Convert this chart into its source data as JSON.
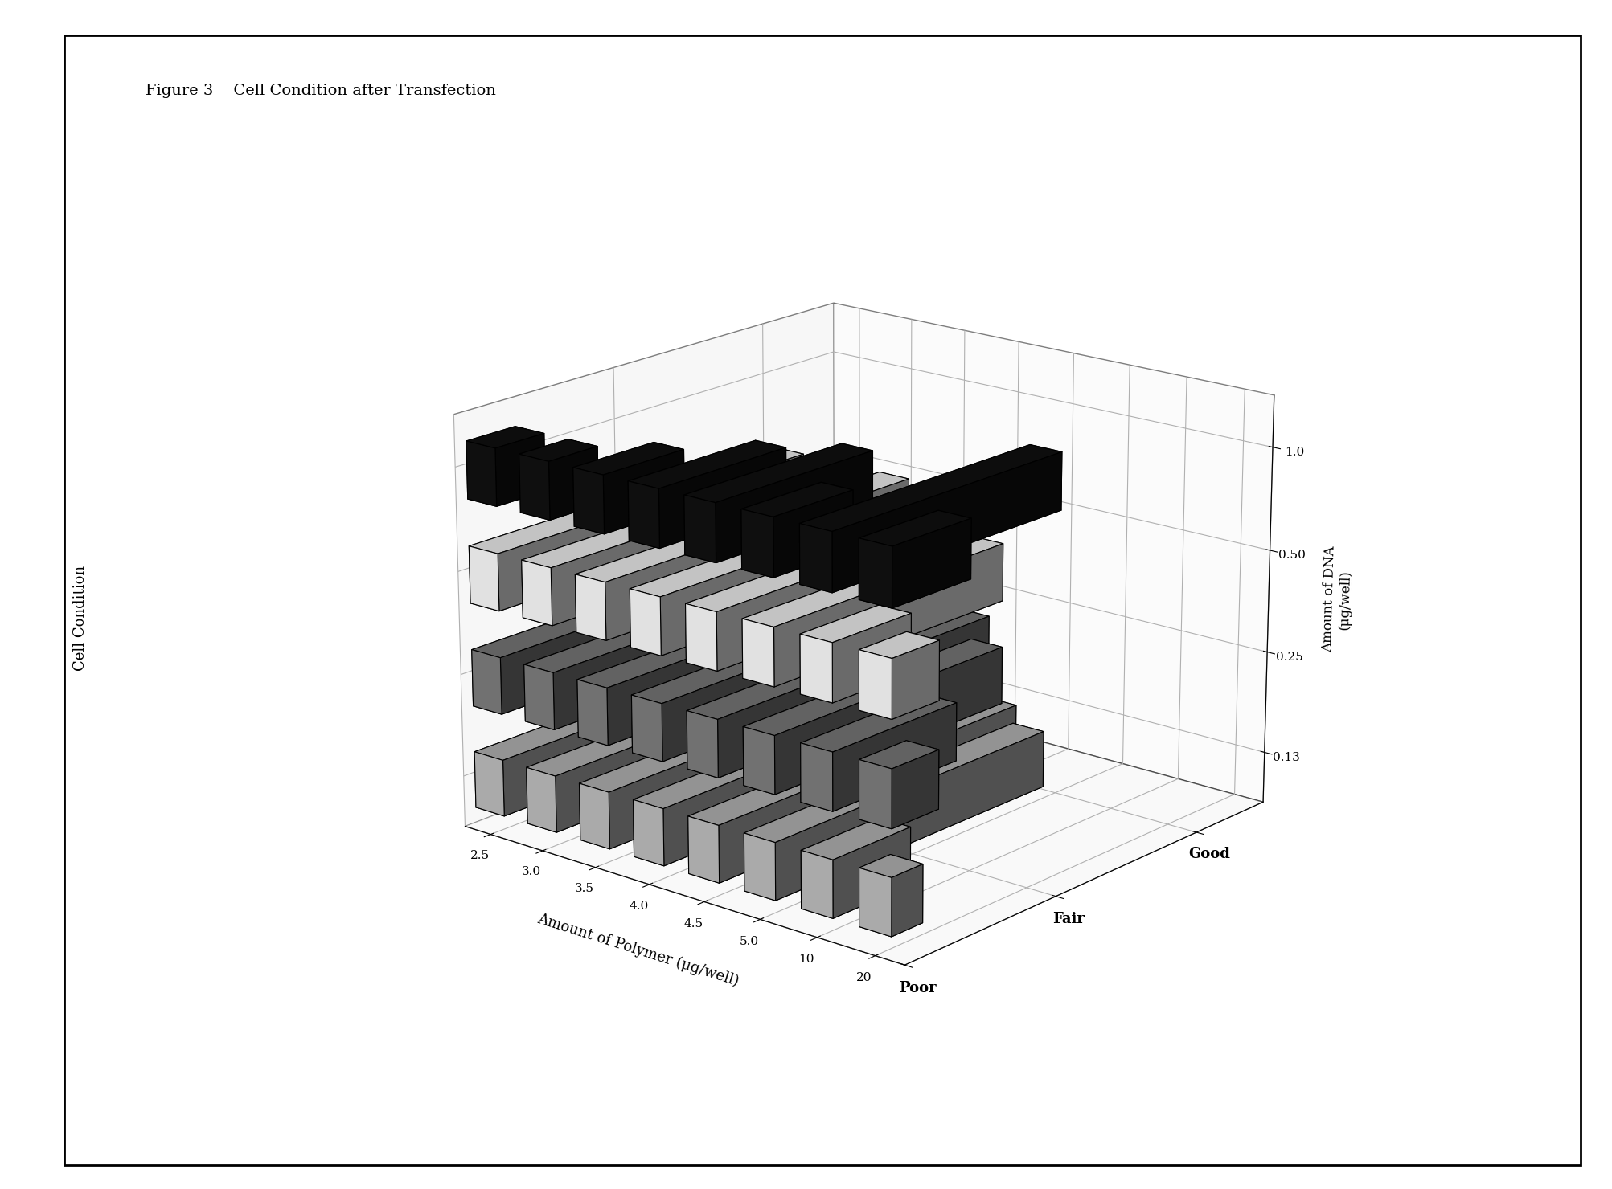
{
  "title": "Figure 3    Cell Condition after Transfection",
  "xlabel": "Amount of Polymer (μg/well)",
  "dna_label": "Amount of DNA\n(μg/well)",
  "cell_label": "Cell Condition",
  "polymer_labels": [
    "2.5",
    "3.0",
    "3.5",
    "4.0",
    "4.5",
    "5.0",
    "10",
    "20"
  ],
  "dna_labels": [
    "0.13",
    "0.25",
    "0.50",
    "1.0"
  ],
  "cell_ticks": [
    "Poor",
    "Fair",
    "Good"
  ],
  "cell_tick_values": [
    0,
    1,
    2
  ],
  "bar_data": {
    "d013": [
      2.0,
      2.0,
      2.0,
      2.0,
      2.0,
      1.8,
      0.5,
      0.2
    ],
    "d025": [
      2.0,
      2.0,
      2.0,
      2.0,
      1.8,
      1.5,
      0.8,
      0.3
    ],
    "d050": [
      2.0,
      2.0,
      2.0,
      1.5,
      1.5,
      1.5,
      0.5,
      0.3
    ],
    "d100": [
      0.3,
      0.3,
      0.5,
      0.8,
      1.0,
      0.5,
      1.5,
      0.5
    ]
  },
  "series_colors": [
    "#c0c0c0",
    "#808080",
    "#ffffff",
    "#111111"
  ],
  "series_hatches": [
    "....",
    "////",
    "",
    ""
  ],
  "elev": 18,
  "azim": -50,
  "fig_width": 20.06,
  "fig_height": 14.8,
  "dpi": 100
}
